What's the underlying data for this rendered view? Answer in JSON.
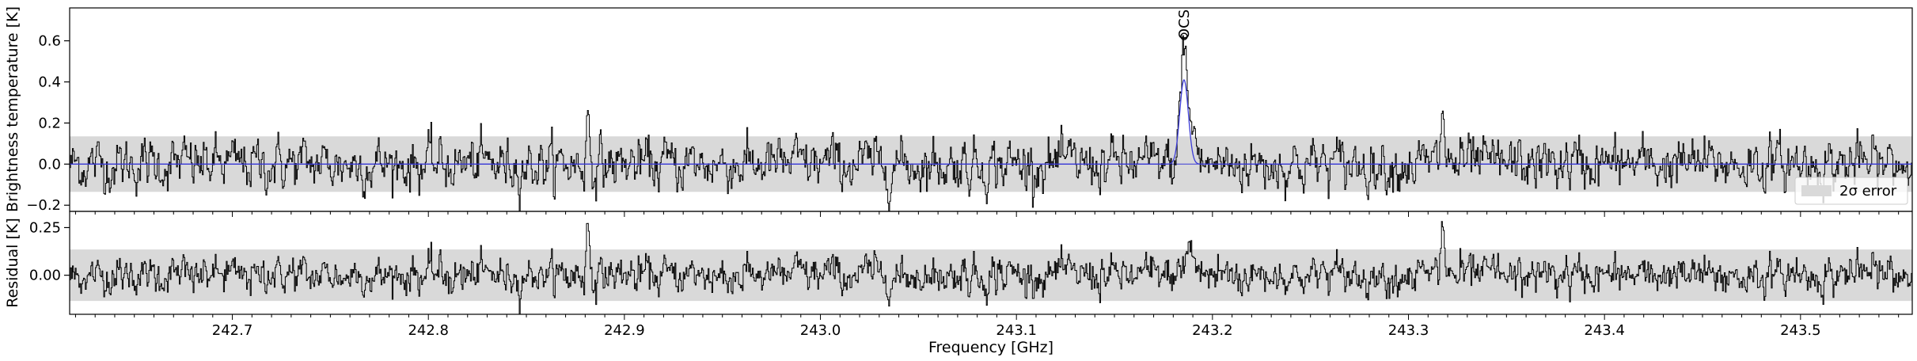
{
  "chart_data": [
    {
      "type": "line",
      "panel": "top",
      "ylabel": "Brightness temperature [K]",
      "xlim": [
        242.617,
        243.557
      ],
      "ylim": [
        -0.23,
        0.76
      ],
      "yticks": [
        -0.2,
        0.0,
        0.2,
        0.4,
        0.6
      ],
      "ytick_labels": [
        "−0.2",
        "0.0",
        "0.2",
        "0.4",
        "0.6"
      ],
      "band_2sigma": [
        -0.135,
        0.135
      ],
      "legend": {
        "label": "2σ error",
        "placement": "lower-right"
      },
      "colors": {
        "observed": "#000000",
        "model": "#3b3bd6",
        "band": "#d9d9d9",
        "zero": "#3b3bd6"
      },
      "series": [
        {
          "key": "observed",
          "style": "steps",
          "noise_sigma": 0.065,
          "features": [
            {
              "x": 243.1855,
              "height": 0.6,
              "sigma": 0.0017
            },
            {
              "x": 243.3175,
              "height": 0.3,
              "sigma": 0.0008
            },
            {
              "x": 242.8815,
              "height": 0.24,
              "sigma": 0.0008
            },
            {
              "x": 243.1905,
              "height": 0.17,
              "sigma": 0.0015
            }
          ]
        },
        {
          "key": "model",
          "style": "gaussian",
          "features": [
            {
              "x": 243.1855,
              "height": 0.41,
              "sigma": 0.0022
            }
          ]
        }
      ],
      "annotations": [
        {
          "text": "OCS",
          "x": 243.1855
        }
      ]
    },
    {
      "type": "line",
      "panel": "bottom",
      "ylabel": "Residual [K]",
      "xlabel": "Frequency [GHz]",
      "xlim": [
        242.617,
        243.557
      ],
      "ylim": [
        -0.205,
        0.335
      ],
      "yticks": [
        0.0,
        0.25
      ],
      "ytick_labels": [
        "0.00",
        "0.25"
      ],
      "xticks": [
        242.7,
        242.8,
        242.9,
        243.0,
        243.1,
        243.2,
        243.3,
        243.4,
        243.5
      ],
      "xtick_labels": [
        "242.7",
        "242.8",
        "242.9",
        "243.0",
        "243.1",
        "243.2",
        "243.3",
        "243.4",
        "243.5"
      ],
      "band_2sigma": [
        -0.135,
        0.135
      ],
      "colors": {
        "residual": "#000000",
        "band": "#d9d9d9"
      },
      "series": [
        {
          "key": "residual",
          "style": "steps",
          "noise_sigma": 0.065,
          "features": [
            {
              "x": 243.3175,
              "height": 0.3,
              "sigma": 0.0008
            },
            {
              "x": 242.8815,
              "height": 0.24,
              "sigma": 0.0008
            },
            {
              "x": 243.1885,
              "height": 0.15,
              "sigma": 0.0022
            }
          ]
        }
      ]
    }
  ]
}
